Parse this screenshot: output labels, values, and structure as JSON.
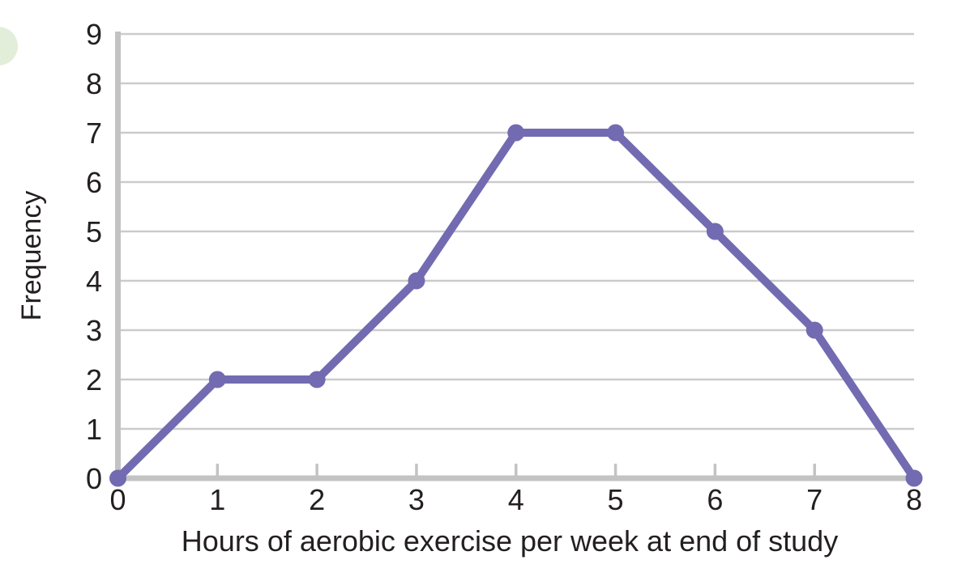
{
  "decoration": {
    "corner_dot_color": "#e3eeda"
  },
  "chart_data": {
    "type": "line",
    "title": "",
    "xlabel": "Hours of aerobic exercise per week at end of study",
    "ylabel": "Frequency",
    "x": [
      0,
      1,
      2,
      3,
      4,
      5,
      6,
      7,
      8
    ],
    "values": [
      0,
      2,
      2,
      4,
      7,
      7,
      5,
      3,
      0
    ],
    "x_ticks": [
      0,
      1,
      2,
      3,
      4,
      5,
      6,
      7,
      8
    ],
    "y_ticks": [
      0,
      1,
      2,
      3,
      4,
      5,
      6,
      7,
      8,
      9
    ],
    "xlim": [
      0,
      8
    ],
    "ylim": [
      0,
      9
    ],
    "grid": "horizontal",
    "legend": "none",
    "line_color": "#726bb1",
    "marker": "circle",
    "gridline_color": "#cbcbcb",
    "axis_color": "#c3c3c3",
    "text_color": "#231f20"
  }
}
